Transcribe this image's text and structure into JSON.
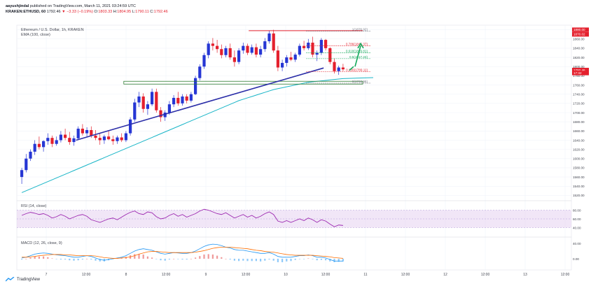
{
  "header": {
    "author": "aayushjindal",
    "published": "published on TradingView.com, March 11, 2021 03:24:59 UTC",
    "symbol_line": "KRAKEN:ETHUSD, 60",
    "last": "1792.46",
    "change": "▼ −3.33 (−0.19%)",
    "o_label": "O:",
    "o": "1803.33",
    "h_label": "H:",
    "h": "1804.95",
    "l_label": "L:",
    "l": "1790.11",
    "c_label": "C:",
    "c": "1792.46"
  },
  "legend": {
    "title": "Ethereum / U.S. Dollar, 1h, KRAKEN",
    "ema": "EMA (100, close)",
    "rsi": "RSI (14, close)",
    "macd": "MACD (12, 26, close, 9)"
  },
  "footer": {
    "brand": "TradingView"
  },
  "colors": {
    "up": "#2636d4",
    "down": "#e4202d",
    "ema": "#18b5c7",
    "trend": "#2b2ea8",
    "support": "#2e7d32",
    "rsi": "#9c27b0",
    "rsi_band": "#e7d5f2",
    "macd": "#2196f3",
    "signal": "#ff6d00",
    "arrow": "#13a85a",
    "last_badge": "#e4202d"
  },
  "chart_data": [
    {
      "type": "candlestick",
      "title": "Ethereum / U.S. Dollar, 1h, KRAKEN",
      "x_ticks": [
        "7",
        "12:00",
        "8",
        "12:00",
        "9",
        "12:00",
        "10",
        "12:00",
        "11",
        "12:00",
        "12",
        "12:00",
        "13",
        "12:00"
      ],
      "y_ticks": [
        1520,
        1540,
        1560,
        1580,
        1600,
        1620,
        1640,
        1660,
        1680,
        1700,
        1720,
        1740,
        1760,
        1780,
        1800,
        1820,
        1840,
        1860,
        1880
      ],
      "ylim": [
        1510,
        1890
      ],
      "candles": [
        [
          1560,
          1580,
          1545,
          1575
        ],
        [
          1575,
          1610,
          1570,
          1600
        ],
        [
          1600,
          1620,
          1595,
          1615
        ],
        [
          1615,
          1640,
          1608,
          1632
        ],
        [
          1632,
          1648,
          1620,
          1625
        ],
        [
          1625,
          1640,
          1615,
          1638
        ],
        [
          1638,
          1655,
          1630,
          1645
        ],
        [
          1645,
          1650,
          1625,
          1632
        ],
        [
          1632,
          1648,
          1628,
          1640
        ],
        [
          1640,
          1660,
          1635,
          1652
        ],
        [
          1652,
          1665,
          1640,
          1645
        ],
        [
          1645,
          1658,
          1630,
          1636
        ],
        [
          1636,
          1650,
          1628,
          1644
        ],
        [
          1644,
          1670,
          1640,
          1665
        ],
        [
          1665,
          1675,
          1650,
          1655
        ],
        [
          1655,
          1668,
          1648,
          1662
        ],
        [
          1662,
          1670,
          1645,
          1650
        ],
        [
          1650,
          1662,
          1640,
          1645
        ],
        [
          1645,
          1655,
          1630,
          1640
        ],
        [
          1640,
          1652,
          1632,
          1648
        ],
        [
          1648,
          1660,
          1640,
          1642
        ],
        [
          1642,
          1650,
          1630,
          1638
        ],
        [
          1638,
          1650,
          1632,
          1646
        ],
        [
          1646,
          1655,
          1636,
          1640
        ],
        [
          1640,
          1660,
          1636,
          1655
        ],
        [
          1655,
          1690,
          1650,
          1685
        ],
        [
          1685,
          1730,
          1680,
          1722
        ],
        [
          1722,
          1745,
          1712,
          1735
        ],
        [
          1735,
          1742,
          1700,
          1708
        ],
        [
          1708,
          1725,
          1695,
          1718
        ],
        [
          1718,
          1752,
          1714,
          1745
        ],
        [
          1745,
          1752,
          1700,
          1705
        ],
        [
          1705,
          1712,
          1680,
          1690
        ],
        [
          1690,
          1705,
          1682,
          1700
        ],
        [
          1700,
          1725,
          1695,
          1718
        ],
        [
          1718,
          1738,
          1712,
          1732
        ],
        [
          1732,
          1745,
          1715,
          1720
        ],
        [
          1720,
          1740,
          1715,
          1735
        ],
        [
          1735,
          1740,
          1720,
          1726
        ],
        [
          1726,
          1745,
          1722,
          1740
        ],
        [
          1740,
          1780,
          1738,
          1775
        ],
        [
          1775,
          1805,
          1770,
          1800
        ],
        [
          1800,
          1830,
          1795,
          1825
        ],
        [
          1825,
          1855,
          1818,
          1850
        ],
        [
          1850,
          1862,
          1835,
          1845
        ],
        [
          1845,
          1858,
          1830,
          1838
        ],
        [
          1838,
          1848,
          1818,
          1825
        ],
        [
          1825,
          1845,
          1820,
          1840
        ],
        [
          1840,
          1850,
          1815,
          1820
        ],
        [
          1820,
          1835,
          1800,
          1810
        ],
        [
          1810,
          1840,
          1805,
          1835
        ],
        [
          1835,
          1852,
          1828,
          1845
        ],
        [
          1845,
          1850,
          1825,
          1830
        ],
        [
          1830,
          1848,
          1826,
          1842
        ],
        [
          1842,
          1850,
          1820,
          1826
        ],
        [
          1826,
          1845,
          1820,
          1838
        ],
        [
          1838,
          1862,
          1832,
          1855
        ],
        [
          1855,
          1878,
          1850,
          1872
        ],
        [
          1872,
          1880,
          1830,
          1835
        ],
        [
          1835,
          1845,
          1790,
          1798
        ],
        [
          1798,
          1815,
          1790,
          1808
        ],
        [
          1808,
          1825,
          1800,
          1820
        ],
        [
          1820,
          1832,
          1812,
          1815
        ],
        [
          1815,
          1830,
          1810,
          1826
        ],
        [
          1826,
          1850,
          1822,
          1845
        ],
        [
          1845,
          1856,
          1835,
          1840
        ],
        [
          1840,
          1860,
          1836,
          1852
        ],
        [
          1852,
          1865,
          1820,
          1826
        ],
        [
          1826,
          1835,
          1812,
          1830
        ],
        [
          1830,
          1862,
          1825,
          1858
        ],
        [
          1858,
          1860,
          1835,
          1840
        ],
        [
          1840,
          1842,
          1805,
          1810
        ],
        [
          1810,
          1818,
          1785,
          1790
        ],
        [
          1790,
          1802,
          1782,
          1798
        ],
        [
          1798,
          1806,
          1790,
          1794
        ]
      ],
      "ema_100": [
        1526,
        1530,
        1534,
        1538,
        1542,
        1546,
        1550,
        1554,
        1558,
        1562,
        1566,
        1570,
        1574,
        1578,
        1582,
        1586,
        1590,
        1594,
        1598,
        1602,
        1606,
        1610,
        1614,
        1618,
        1622,
        1626,
        1630,
        1634,
        1638,
        1642,
        1646,
        1650,
        1654,
        1658,
        1662,
        1666,
        1670,
        1674,
        1678,
        1682,
        1686,
        1690,
        1694,
        1698,
        1702,
        1706,
        1710,
        1714,
        1718,
        1722,
        1726,
        1729,
        1732,
        1735,
        1738,
        1741,
        1744,
        1747,
        1750,
        1752,
        1754,
        1756,
        1758,
        1760,
        1762,
        1764,
        1766,
        1767,
        1768,
        1769,
        1770,
        1771,
        1772,
        1773,
        1774
      ],
      "fib_levels": [
        {
          "ratio": "1(1876.92)",
          "value": 1876.92
        },
        {
          "ratio": "0.786(1845.37)",
          "value": 1845.37
        },
        {
          "ratio": "0.618(1829.81)",
          "value": 1829.81
        },
        {
          "ratio": "0.5(1817.24)",
          "value": 1817.24
        },
        {
          "ratio": "0.236(1789.11)",
          "value": 1789.11
        },
        {
          "ratio": "0(1763.96)",
          "value": 1763.96
        }
      ],
      "price_badges": [
        "1880.00",
        "1870.02",
        "1792.46",
        "17:32"
      ],
      "support_level": 1765,
      "resistance_level": 1878,
      "trendline": [
        [
          13,
          1640
        ],
        [
          66,
          1785
        ]
      ]
    },
    {
      "type": "line",
      "title": "RSI (14, close)",
      "y_ticks": [
        80,
        60,
        40
      ],
      "band": [
        40,
        80
      ],
      "values": [
        68,
        72,
        75,
        73,
        70,
        72,
        68,
        62,
        65,
        70,
        66,
        60,
        64,
        68,
        70,
        66,
        58,
        55,
        52,
        56,
        60,
        62,
        58,
        64,
        70,
        75,
        78,
        72,
        70,
        76,
        74,
        65,
        60,
        62,
        68,
        72,
        66,
        70,
        64,
        68,
        72,
        78,
        82,
        80,
        76,
        72,
        70,
        74,
        68,
        62,
        66,
        70,
        64,
        68,
        62,
        66,
        72,
        76,
        70,
        55,
        52,
        56,
        52,
        56,
        60,
        56,
        62,
        58,
        52,
        58,
        55,
        48,
        42,
        46,
        45
      ]
    },
    {
      "type": "line",
      "title": "MACD (12, 26, close, 9)",
      "y_ticks": [
        40.0,
        0.0
      ],
      "macd": [
        2,
        4,
        8,
        12,
        14,
        15,
        14,
        12,
        10,
        9,
        8,
        6,
        4,
        4,
        6,
        8,
        6,
        2,
        -2,
        -4,
        -2,
        0,
        2,
        4,
        8,
        14,
        20,
        24,
        26,
        24,
        22,
        18,
        14,
        12,
        14,
        16,
        15,
        14,
        14,
        16,
        20,
        26,
        32,
        36,
        38,
        37,
        34,
        30,
        28,
        24,
        22,
        22,
        20,
        18,
        16,
        14,
        14,
        16,
        12,
        6,
        4,
        4,
        4,
        6,
        8,
        8,
        10,
        8,
        4,
        4,
        2,
        -2,
        -6,
        -6,
        -6
      ],
      "signal": [
        4,
        4,
        5,
        6,
        8,
        9,
        10,
        11,
        11,
        11,
        10,
        10,
        9,
        8,
        8,
        8,
        8,
        7,
        5,
        3,
        2,
        1,
        1,
        2,
        3,
        5,
        8,
        12,
        15,
        18,
        19,
        19,
        18,
        17,
        16,
        16,
        16,
        16,
        16,
        16,
        17,
        19,
        21,
        24,
        27,
        29,
        30,
        30,
        30,
        29,
        28,
        27,
        26,
        24,
        22,
        21,
        19,
        18,
        17,
        15,
        13,
        11,
        10,
        9,
        9,
        9,
        9,
        9,
        8,
        7,
        6,
        5,
        3,
        2,
        1
      ]
    }
  ]
}
